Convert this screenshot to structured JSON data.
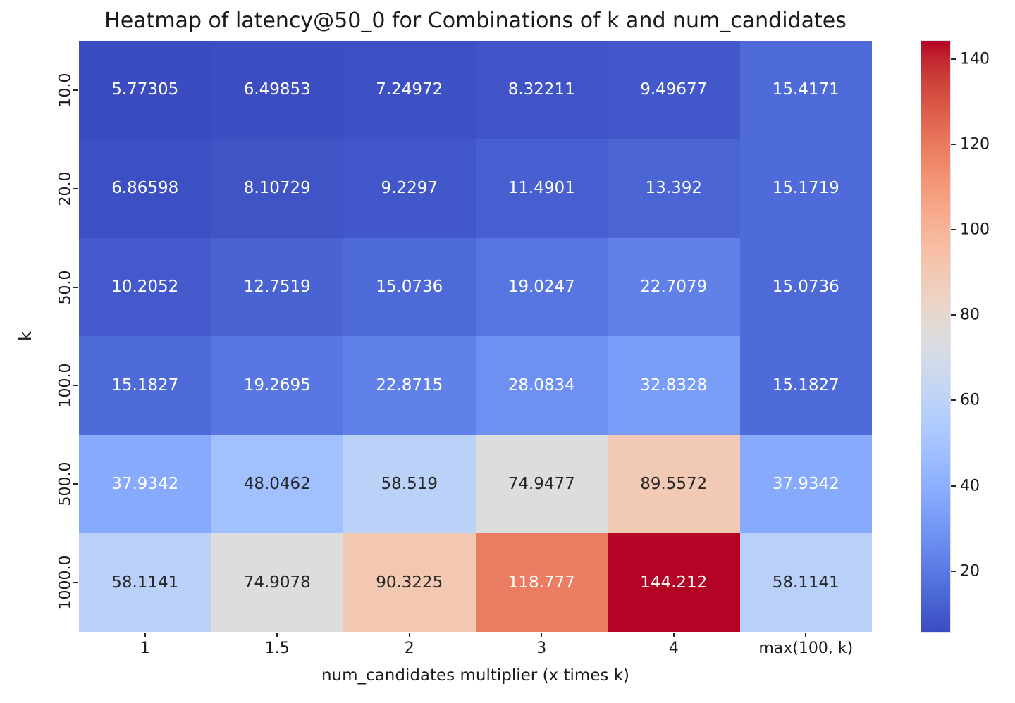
{
  "title": "Heatmap of latency@50_0 for Combinations of k and num_candidates",
  "colors": {
    "background": "#ffffff",
    "axis_text": "#1a1a1a",
    "annot_dark": "#262626",
    "annot_white": "#ffffff",
    "cmap_min": "#3b4cc0",
    "cmap_mid": "#dddddd",
    "cmap_max": "#b40426"
  },
  "chart_data": {
    "type": "heatmap",
    "title": "Heatmap of latency@50_0 for Combinations of k and num_candidates",
    "xlabel": "num_candidates multiplier (x times k)",
    "ylabel": "k",
    "columns": [
      "1",
      "1.5",
      "2",
      "3",
      "4",
      "max(100, k)"
    ],
    "rows": [
      "10.0",
      "20.0",
      "50.0",
      "100.0",
      "500.0",
      "1000.0"
    ],
    "values": [
      [
        5.77305,
        6.49853,
        7.24972,
        8.32211,
        9.49677,
        15.4171
      ],
      [
        6.86598,
        8.10729,
        9.2297,
        11.4901,
        13.392,
        15.1719
      ],
      [
        10.2052,
        12.7519,
        15.0736,
        19.0247,
        22.7079,
        15.0736
      ],
      [
        15.1827,
        19.2695,
        22.8715,
        28.0834,
        32.8328,
        15.1827
      ],
      [
        37.9342,
        48.0462,
        58.519,
        74.9477,
        89.5572,
        37.9342
      ],
      [
        58.1141,
        74.9078,
        90.3225,
        118.777,
        144.212,
        58.1141
      ]
    ],
    "white_text": [
      [
        true,
        true,
        true,
        true,
        true,
        true
      ],
      [
        true,
        true,
        true,
        true,
        true,
        true
      ],
      [
        true,
        true,
        true,
        true,
        true,
        true
      ],
      [
        true,
        true,
        true,
        true,
        true,
        true
      ],
      [
        true,
        false,
        false,
        false,
        false,
        true
      ],
      [
        false,
        false,
        false,
        true,
        true,
        false
      ]
    ],
    "colormap": "coolwarm",
    "vmin": 5.77305,
    "vmax": 144.212,
    "colorbar_ticks": [
      20,
      40,
      60,
      80,
      100,
      120,
      140
    ],
    "colorbar_position": "right",
    "grid": false
  }
}
